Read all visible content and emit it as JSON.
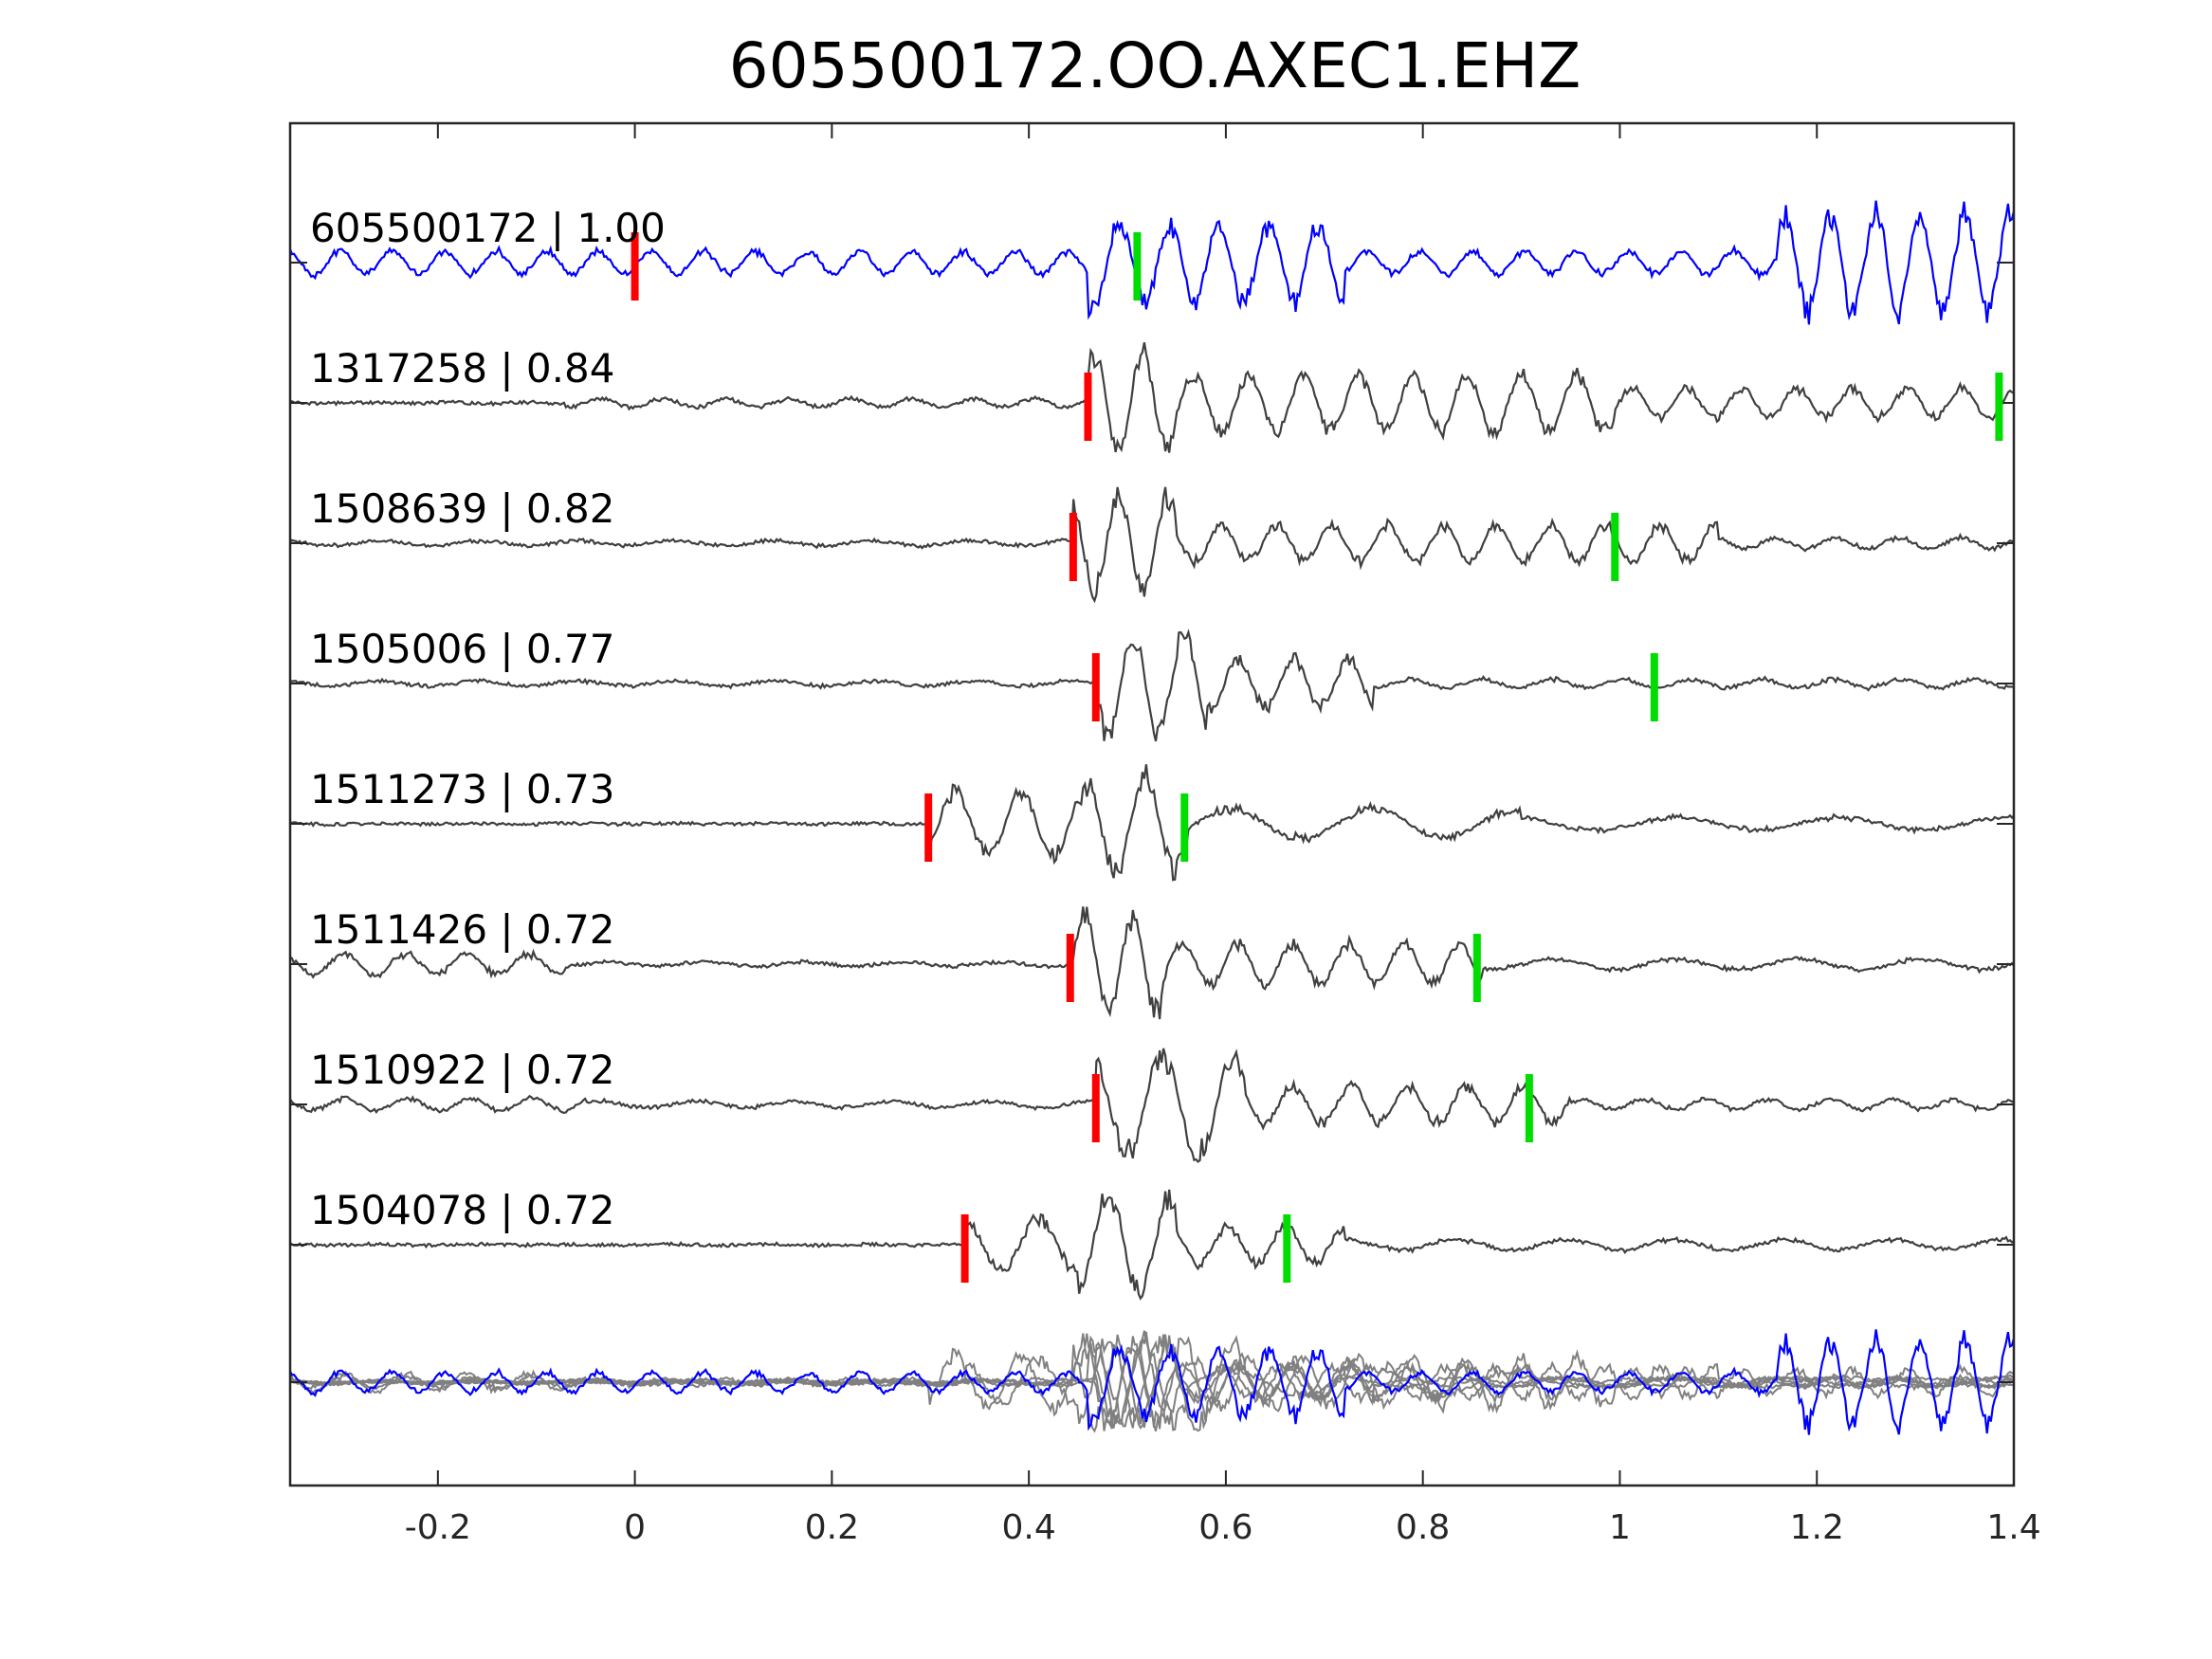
{
  "chart_data": {
    "type": "line",
    "title": "605500172.OO.AXEC1.EHZ",
    "xlabel": "",
    "ylabel": "",
    "xlim": [
      -0.35,
      1.4
    ],
    "xticks": [
      -0.2,
      0,
      0.2,
      0.4,
      0.6,
      0.8,
      1,
      1.2,
      1.4
    ],
    "xtick_labels": [
      "-0.2",
      "0",
      "0.2",
      "0.4",
      "0.6",
      "0.8",
      "1",
      "1.2",
      "1.4"
    ],
    "grid": false,
    "legend": "none",
    "colors": {
      "template": "#0000ff",
      "match": "#404040",
      "overlay": "#808080",
      "p_pick": "#ff0000",
      "s_pick": "#00dd00"
    },
    "series": [
      {
        "name": "605500172 | 1.00",
        "role": "template",
        "p_pick": 0.0,
        "s_pick": 0.51,
        "bursts": [
          {
            "t0": -0.35,
            "t1": 0.46,
            "amp": 0.22,
            "freq": 19
          },
          {
            "t0": 0.46,
            "t1": 0.49,
            "amp": 0.9,
            "freq": 18
          },
          {
            "t0": 0.49,
            "t1": 0.72,
            "amp": 0.75,
            "freq": 20
          },
          {
            "t0": 0.72,
            "t1": 1.16,
            "amp": 0.22,
            "freq": 19
          },
          {
            "t0": 1.16,
            "t1": 1.4,
            "amp": 0.95,
            "freq": 22
          }
        ]
      },
      {
        "name": "1317258 | 0.84",
        "role": "match",
        "p_pick": 0.46,
        "s_pick": 1.385,
        "bursts": [
          {
            "t0": -0.35,
            "t1": -0.07,
            "amp": 0.01,
            "freq": 12
          },
          {
            "t0": -0.07,
            "t1": 0.46,
            "amp": 0.08,
            "freq": 16
          },
          {
            "t0": 0.46,
            "t1": 0.55,
            "amp": 0.95,
            "freq": 20
          },
          {
            "t0": 0.55,
            "t1": 1.0,
            "amp": 0.55,
            "freq": 18
          },
          {
            "t0": 1.0,
            "t1": 1.4,
            "amp": 0.28,
            "freq": 18
          }
        ]
      },
      {
        "name": "1508639 | 0.82",
        "role": "match",
        "p_pick": 0.445,
        "s_pick": 0.995,
        "bursts": [
          {
            "t0": -0.35,
            "t1": 0.445,
            "amp": 0.05,
            "freq": 10
          },
          {
            "t0": 0.445,
            "t1": 0.55,
            "amp": 0.9,
            "freq": 20
          },
          {
            "t0": 0.55,
            "t1": 1.1,
            "amp": 0.35,
            "freq": 18
          },
          {
            "t0": 1.1,
            "t1": 1.4,
            "amp": 0.1,
            "freq": 16
          }
        ]
      },
      {
        "name": "1505006 | 0.77",
        "role": "match",
        "p_pick": 0.468,
        "s_pick": 1.035,
        "bursts": [
          {
            "t0": -0.35,
            "t1": 0.468,
            "amp": 0.05,
            "freq": 10
          },
          {
            "t0": 0.468,
            "t1": 0.58,
            "amp": 0.95,
            "freq": 19
          },
          {
            "t0": 0.58,
            "t1": 0.75,
            "amp": 0.45,
            "freq": 18
          },
          {
            "t0": 0.75,
            "t1": 1.4,
            "amp": 0.08,
            "freq": 14
          }
        ]
      },
      {
        "name": "1511273 | 0.73",
        "role": "match",
        "p_pick": 0.298,
        "s_pick": 0.558,
        "bursts": [
          {
            "t0": -0.35,
            "t1": 0.298,
            "amp": 0.01,
            "freq": 10
          },
          {
            "t0": 0.298,
            "t1": 0.46,
            "amp": 0.6,
            "freq": 15
          },
          {
            "t0": 0.46,
            "t1": 0.56,
            "amp": 0.95,
            "freq": 17
          },
          {
            "t0": 0.56,
            "t1": 0.9,
            "amp": 0.28,
            "freq": 7
          },
          {
            "t0": 0.9,
            "t1": 1.4,
            "amp": 0.12,
            "freq": 6
          }
        ]
      },
      {
        "name": "1511426 | 0.72",
        "role": "match",
        "p_pick": 0.442,
        "s_pick": 0.855,
        "bursts": [
          {
            "t0": -0.35,
            "t1": -0.07,
            "amp": 0.2,
            "freq": 16
          },
          {
            "t0": -0.07,
            "t1": 0.442,
            "amp": 0.04,
            "freq": 10
          },
          {
            "t0": 0.442,
            "t1": 0.54,
            "amp": 0.95,
            "freq": 20
          },
          {
            "t0": 0.54,
            "t1": 0.86,
            "amp": 0.4,
            "freq": 18
          },
          {
            "t0": 0.86,
            "t1": 1.4,
            "amp": 0.1,
            "freq": 8
          }
        ]
      },
      {
        "name": "1510922 | 0.72",
        "role": "match",
        "p_pick": 0.468,
        "s_pick": 0.908,
        "bursts": [
          {
            "t0": -0.35,
            "t1": -0.05,
            "amp": 0.12,
            "freq": 16
          },
          {
            "t0": -0.05,
            "t1": 0.468,
            "amp": 0.06,
            "freq": 10
          },
          {
            "t0": 0.468,
            "t1": 0.62,
            "amp": 0.95,
            "freq": 14
          },
          {
            "t0": 0.62,
            "t1": 0.95,
            "amp": 0.35,
            "freq": 17
          },
          {
            "t0": 0.95,
            "t1": 1.4,
            "amp": 0.1,
            "freq": 16
          }
        ]
      },
      {
        "name": "1504078 | 0.72",
        "role": "match",
        "p_pick": 0.335,
        "s_pick": 0.662,
        "bursts": [
          {
            "t0": -0.35,
            "t1": 0.335,
            "amp": 0.01,
            "freq": 10
          },
          {
            "t0": 0.335,
            "t1": 0.45,
            "amp": 0.5,
            "freq": 13
          },
          {
            "t0": 0.45,
            "t1": 0.55,
            "amp": 0.95,
            "freq": 16
          },
          {
            "t0": 0.55,
            "t1": 0.72,
            "amp": 0.35,
            "freq": 17
          },
          {
            "t0": 0.72,
            "t1": 1.4,
            "amp": 0.1,
            "freq": 9
          }
        ]
      }
    ],
    "overlay": {
      "label": "",
      "description_hidden": true
    }
  }
}
